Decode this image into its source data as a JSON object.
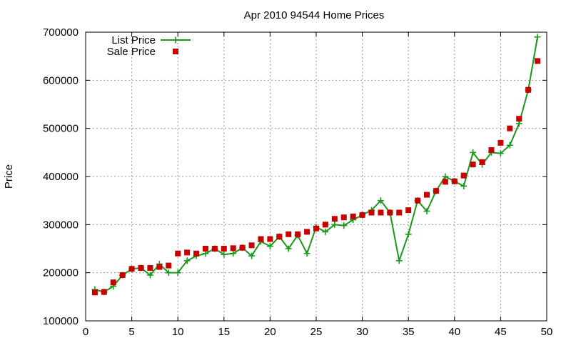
{
  "chart_data": {
    "type": "line",
    "title": "Apr 2010 94544 Home Prices",
    "xlabel": "",
    "ylabel": "Price",
    "xlim": [
      0,
      50
    ],
    "ylim": [
      100000,
      700000
    ],
    "xticks": [
      0,
      5,
      10,
      15,
      20,
      25,
      30,
      35,
      40,
      45,
      50
    ],
    "yticks": [
      100000,
      200000,
      300000,
      400000,
      500000,
      600000,
      700000
    ],
    "grid": true,
    "legend_position": "top-left",
    "series": [
      {
        "name": "List Price",
        "style": "line-cross",
        "color": "#1a9a1a",
        "x": [
          1,
          2,
          3,
          4,
          5,
          6,
          7,
          8,
          9,
          10,
          11,
          12,
          13,
          14,
          15,
          16,
          17,
          18,
          19,
          20,
          21,
          22,
          23,
          24,
          25,
          26,
          27,
          28,
          29,
          30,
          31,
          32,
          33,
          34,
          35,
          36,
          37,
          38,
          39,
          40,
          41,
          42,
          43,
          44,
          45,
          46,
          47,
          48,
          49
        ],
        "values": [
          165000,
          160000,
          172000,
          195000,
          208000,
          210000,
          195000,
          218000,
          200000,
          200000,
          225000,
          235000,
          240000,
          250000,
          238000,
          240000,
          252000,
          235000,
          265000,
          255000,
          275000,
          250000,
          278000,
          240000,
          295000,
          285000,
          300000,
          298000,
          310000,
          320000,
          330000,
          350000,
          325000,
          225000,
          280000,
          350000,
          328000,
          370000,
          400000,
          390000,
          380000,
          450000,
          425000,
          450000,
          448000,
          465000,
          510000,
          580000,
          690000
        ]
      },
      {
        "name": "Sale Price",
        "style": "square",
        "color": "#c80000",
        "x": [
          1,
          2,
          3,
          4,
          5,
          6,
          7,
          8,
          9,
          10,
          11,
          12,
          13,
          14,
          15,
          16,
          17,
          18,
          19,
          20,
          21,
          22,
          23,
          24,
          25,
          26,
          27,
          28,
          29,
          30,
          31,
          32,
          33,
          34,
          35,
          36,
          37,
          38,
          39,
          40,
          41,
          42,
          43,
          44,
          45,
          46,
          47,
          48,
          49
        ],
        "values": [
          159000,
          160000,
          180000,
          195000,
          208000,
          210000,
          210000,
          212000,
          215000,
          240000,
          242000,
          240000,
          250000,
          250000,
          250000,
          251000,
          252000,
          257000,
          270000,
          270000,
          275000,
          280000,
          280000,
          285000,
          292000,
          300000,
          312000,
          315000,
          317000,
          320000,
          325000,
          325000,
          325000,
          325000,
          330000,
          350000,
          362000,
          370000,
          389000,
          390000,
          402000,
          425000,
          430000,
          455000,
          470000,
          500000,
          520000,
          580000,
          640000
        ]
      }
    ]
  }
}
